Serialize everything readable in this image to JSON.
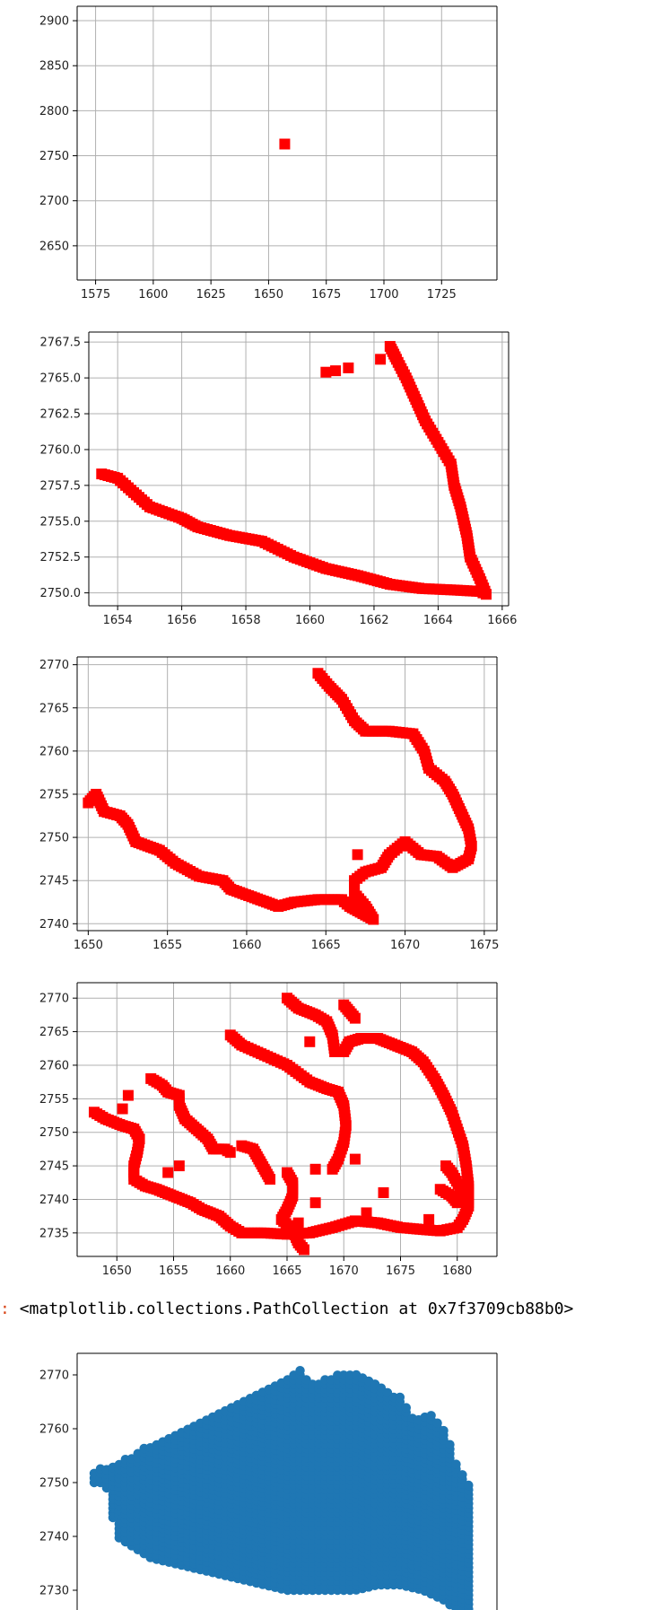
{
  "notebook": {
    "output_prompt": ":",
    "output_repr": "<matplotlib.collections.PathCollection at 0x7f3709cb88b0>"
  },
  "chart_data": [
    {
      "type": "scatter",
      "grid": true,
      "xlim": [
        1567,
        1749
      ],
      "ylim": [
        2612,
        2916
      ],
      "xticks": [
        1575,
        1600,
        1625,
        1650,
        1675,
        1700,
        1725
      ],
      "yticks": [
        2650,
        2700,
        2750,
        2800,
        2850,
        2900
      ],
      "color": "#ff0000",
      "marker": "square",
      "series": [
        {
          "points": [
            [
              1657,
              2763
            ]
          ]
        }
      ]
    },
    {
      "type": "scatter",
      "grid": true,
      "xlim": [
        1653.1,
        1666.2
      ],
      "ylim": [
        2749.1,
        2768.2
      ],
      "xticks": [
        1654,
        1656,
        1658,
        1660,
        1662,
        1664,
        1666
      ],
      "ytick_labels": [
        "2750.0",
        "2752.5",
        "2755.0",
        "2757.5",
        "2760.0",
        "2762.5",
        "2765.0",
        "2767.5"
      ],
      "yticks": [
        2750.0,
        2752.5,
        2755.0,
        2757.5,
        2760.0,
        2762.5,
        2765.0,
        2767.5
      ],
      "color": "#ff0000",
      "marker": "square",
      "series": [
        {
          "polyline": [
            [
              1653.5,
              2758.3
            ],
            [
              1654.0,
              2758.0
            ],
            [
              1654.5,
              2757.0
            ],
            [
              1655.0,
              2756.0
            ],
            [
              1656.0,
              2755.2
            ],
            [
              1656.5,
              2754.6
            ],
            [
              1657.5,
              2754.0
            ],
            [
              1658.5,
              2753.6
            ],
            [
              1659.5,
              2752.5
            ],
            [
              1660.5,
              2751.7
            ],
            [
              1661.5,
              2751.2
            ],
            [
              1662.5,
              2750.6
            ],
            [
              1663.5,
              2750.3
            ],
            [
              1664.5,
              2750.2
            ],
            [
              1665.3,
              2750.1
            ],
            [
              1665.5,
              2749.9
            ],
            [
              1665.3,
              2751.0
            ],
            [
              1665.0,
              2752.5
            ],
            [
              1664.9,
              2754.0
            ],
            [
              1664.7,
              2756.0
            ],
            [
              1664.5,
              2757.5
            ],
            [
              1664.4,
              2759.0
            ],
            [
              1664.0,
              2760.5
            ],
            [
              1663.6,
              2762.0
            ],
            [
              1663.3,
              2763.5
            ],
            [
              1663.0,
              2765.0
            ],
            [
              1662.7,
              2766.3
            ],
            [
              1662.5,
              2767.2
            ]
          ]
        },
        {
          "points": [
            [
              1662.2,
              2766.3
            ],
            [
              1660.5,
              2765.4
            ],
            [
              1660.8,
              2765.5
            ],
            [
              1661.2,
              2765.7
            ]
          ]
        }
      ]
    },
    {
      "type": "scatter",
      "grid": true,
      "xlim": [
        1649.3,
        1675.8
      ],
      "ylim": [
        2739.2,
        2770.9
      ],
      "xticks": [
        1650,
        1655,
        1660,
        1665,
        1670,
        1675
      ],
      "yticks": [
        2740,
        2745,
        2750,
        2755,
        2760,
        2765,
        2770
      ],
      "color": "#ff0000",
      "marker": "square",
      "series": [
        {
          "polyline": [
            [
              1650.0,
              2754.0
            ],
            [
              1650.5,
              2755.0
            ],
            [
              1651.0,
              2753.0
            ],
            [
              1652.0,
              2752.5
            ],
            [
              1652.5,
              2751.5
            ],
            [
              1653.0,
              2749.5
            ],
            [
              1654.5,
              2748.5
            ],
            [
              1655.5,
              2747.0
            ],
            [
              1657.0,
              2745.5
            ],
            [
              1658.5,
              2745.0
            ],
            [
              1659.0,
              2744.0
            ],
            [
              1660.5,
              2743.0
            ],
            [
              1662.0,
              2742.0
            ],
            [
              1663.0,
              2742.5
            ],
            [
              1664.5,
              2742.8
            ],
            [
              1666.0,
              2742.8
            ],
            [
              1666.5,
              2742.0
            ],
            [
              1667.5,
              2741.0
            ],
            [
              1668.0,
              2740.5
            ],
            [
              1667.5,
              2742.0
            ],
            [
              1666.8,
              2743.5
            ],
            [
              1666.8,
              2745.0
            ],
            [
              1667.5,
              2746.0
            ],
            [
              1668.5,
              2746.5
            ],
            [
              1669.0,
              2748.0
            ],
            [
              1670.0,
              2749.5
            ],
            [
              1671.0,
              2748.0
            ],
            [
              1672.0,
              2747.8
            ],
            [
              1673.0,
              2746.5
            ],
            [
              1674.0,
              2747.5
            ],
            [
              1674.2,
              2749.0
            ],
            [
              1674.0,
              2751.0
            ],
            [
              1673.5,
              2753.0
            ],
            [
              1673.0,
              2755.0
            ],
            [
              1672.5,
              2756.5
            ],
            [
              1671.5,
              2758.0
            ],
            [
              1671.2,
              2760.0
            ],
            [
              1670.5,
              2762.0
            ],
            [
              1669.0,
              2762.3
            ],
            [
              1667.5,
              2762.3
            ],
            [
              1666.8,
              2763.5
            ],
            [
              1666.0,
              2766.0
            ],
            [
              1665.2,
              2767.5
            ],
            [
              1664.5,
              2769.0
            ]
          ]
        },
        {
          "points": [
            [
              1667.0,
              2748.0
            ]
          ]
        }
      ]
    },
    {
      "type": "scatter",
      "grid": true,
      "xlim": [
        1646.5,
        1683.5
      ],
      "ylim": [
        2731.5,
        2772.3
      ],
      "xticks": [
        1650,
        1655,
        1660,
        1665,
        1670,
        1675,
        1680
      ],
      "yticks": [
        2735,
        2740,
        2745,
        2750,
        2755,
        2760,
        2765,
        2770
      ],
      "color": "#ff0000",
      "marker": "square",
      "series": [
        {
          "polyline": [
            [
              1648.0,
              2753.0
            ],
            [
              1649.0,
              2752.0
            ],
            [
              1650.5,
              2751.0
            ],
            [
              1651.5,
              2750.5
            ],
            [
              1652.0,
              2749.0
            ],
            [
              1651.8,
              2747.0
            ],
            [
              1651.5,
              2745.0
            ],
            [
              1651.5,
              2743.0
            ],
            [
              1652.5,
              2742.0
            ],
            [
              1653.5,
              2741.5
            ],
            [
              1655.0,
              2740.5
            ],
            [
              1656.5,
              2739.5
            ],
            [
              1657.5,
              2738.5
            ],
            [
              1659.0,
              2737.5
            ],
            [
              1660.0,
              2736.0
            ],
            [
              1661.0,
              2735.0
            ],
            [
              1663.0,
              2735.0
            ],
            [
              1665.0,
              2734.8
            ],
            [
              1667.0,
              2735.0
            ],
            [
              1669.0,
              2735.8
            ],
            [
              1671.0,
              2736.8
            ],
            [
              1673.0,
              2736.5
            ],
            [
              1675.0,
              2735.8
            ],
            [
              1677.0,
              2735.5
            ],
            [
              1678.5,
              2735.3
            ],
            [
              1680.0,
              2735.8
            ],
            [
              1680.5,
              2737.0
            ],
            [
              1681.0,
              2739.0
            ],
            [
              1681.0,
              2742.0
            ],
            [
              1680.8,
              2745.0
            ],
            [
              1680.5,
              2748.0
            ],
            [
              1680.0,
              2750.5
            ],
            [
              1679.5,
              2753.0
            ],
            [
              1678.8,
              2755.5
            ],
            [
              1678.0,
              2758.0
            ],
            [
              1677.0,
              2760.5
            ],
            [
              1676.0,
              2762.0
            ],
            [
              1674.5,
              2763.0
            ],
            [
              1673.0,
              2764.0
            ],
            [
              1671.5,
              2764.0
            ],
            [
              1670.5,
              2763.5
            ],
            [
              1670.0,
              2762.0
            ]
          ]
        },
        {
          "polyline": [
            [
              1660.0,
              2764.5
            ],
            [
              1661.0,
              2763.0
            ],
            [
              1663.0,
              2761.5
            ],
            [
              1665.0,
              2760.0
            ],
            [
              1667.0,
              2757.5
            ],
            [
              1668.5,
              2756.5
            ],
            [
              1669.5,
              2756.0
            ],
            [
              1670.0,
              2754.0
            ],
            [
              1670.2,
              2751.0
            ],
            [
              1670.0,
              2748.5
            ],
            [
              1669.5,
              2746.0
            ],
            [
              1669.0,
              2744.5
            ]
          ]
        },
        {
          "polyline": [
            [
              1665.0,
              2770.0
            ],
            [
              1666.0,
              2768.5
            ],
            [
              1667.5,
              2767.5
            ],
            [
              1668.5,
              2766.5
            ],
            [
              1669.0,
              2764.5
            ],
            [
              1669.2,
              2762.0
            ]
          ]
        },
        {
          "polyline": [
            [
              1670.0,
              2769.0
            ],
            [
              1670.5,
              2768.0
            ],
            [
              1671.0,
              2767.0
            ]
          ]
        },
        {
          "polyline": [
            [
              1653.0,
              2758.0
            ],
            [
              1654.0,
              2757.0
            ],
            [
              1654.5,
              2756.0
            ],
            [
              1655.5,
              2755.5
            ],
            [
              1655.5,
              2754.0
            ],
            [
              1656.0,
              2752.0
            ],
            [
              1657.0,
              2750.5
            ],
            [
              1658.0,
              2749.0
            ],
            [
              1658.5,
              2747.5
            ],
            [
              1659.5,
              2747.5
            ],
            [
              1660.0,
              2747.0
            ]
          ]
        },
        {
          "polyline": [
            [
              1661.0,
              2748.0
            ],
            [
              1662.0,
              2747.5
            ],
            [
              1662.5,
              2746.0
            ],
            [
              1663.0,
              2744.5
            ],
            [
              1663.5,
              2743.0
            ]
          ]
        },
        {
          "polyline": [
            [
              1665.0,
              2744.0
            ],
            [
              1665.5,
              2742.5
            ],
            [
              1665.5,
              2740.5
            ],
            [
              1665.0,
              2738.5
            ],
            [
              1664.5,
              2737.0
            ],
            [
              1665.5,
              2735.5
            ],
            [
              1666.0,
              2733.5
            ],
            [
              1666.5,
              2732.5
            ]
          ]
        },
        {
          "polyline": [
            [
              1678.5,
              2741.5
            ],
            [
              1679.5,
              2740.5
            ],
            [
              1680.0,
              2739.5
            ],
            [
              1680.5,
              2741.0
            ],
            [
              1679.5,
              2744.0
            ],
            [
              1679.0,
              2745.0
            ]
          ]
        },
        {
          "points": [
            [
              1650.5,
              2753.5
            ],
            [
              1651.0,
              2755.5
            ],
            [
              1654.5,
              2744.0
            ],
            [
              1655.5,
              2745.0
            ],
            [
              1667.0,
              2763.5
            ],
            [
              1667.5,
              2739.5
            ],
            [
              1671.0,
              2746.0
            ],
            [
              1673.5,
              2741.0
            ],
            [
              1672.0,
              2738.0
            ],
            [
              1677.5,
              2737.0
            ],
            [
              1666.0,
              2736.5
            ],
            [
              1667.5,
              2744.5
            ]
          ]
        }
      ]
    },
    {
      "type": "scatter",
      "grid": false,
      "xlim": [
        1646.5,
        1683.5
      ],
      "ylim": [
        2724.0,
        2774.0
      ],
      "xticks": [],
      "yticks": [
        2730,
        2740,
        2750,
        2760,
        2770
      ],
      "color": "#1f77b4",
      "marker": "circle",
      "grid_fill": {
        "x_start": 1648.0,
        "x_end": 1681.0,
        "x_step": 0.55,
        "y_step": 0.85,
        "top": [
          [
            1648.0,
            2752
          ],
          [
            1649.0,
            2753
          ],
          [
            1650.5,
            2754
          ],
          [
            1652.0,
            2756
          ],
          [
            1654.0,
            2758
          ],
          [
            1656.0,
            2760
          ],
          [
            1658.0,
            2762
          ],
          [
            1660.0,
            2764
          ],
          [
            1662.0,
            2766
          ],
          [
            1664.0,
            2768
          ],
          [
            1665.5,
            2770
          ],
          [
            1666.0,
            2772
          ],
          [
            1667.0,
            2768
          ],
          [
            1669.0,
            2770
          ],
          [
            1671.5,
            2770
          ],
          [
            1673.0,
            2768
          ],
          [
            1675.0,
            2766
          ],
          [
            1676.0,
            2762
          ],
          [
            1677.5,
            2763
          ],
          [
            1679.0,
            2760
          ],
          [
            1680.0,
            2753
          ],
          [
            1681.0,
            2750
          ]
        ],
        "bottom": [
          [
            1648.0,
            2750
          ],
          [
            1649.0,
            2750
          ],
          [
            1650.0,
            2740
          ],
          [
            1651.5,
            2738
          ],
          [
            1653.0,
            2736
          ],
          [
            1655.0,
            2735
          ],
          [
            1657.0,
            2734
          ],
          [
            1659.0,
            2733
          ],
          [
            1661.0,
            2732
          ],
          [
            1663.0,
            2731
          ],
          [
            1665.0,
            2730
          ],
          [
            1667.0,
            2730
          ],
          [
            1669.0,
            2730
          ],
          [
            1671.0,
            2730
          ],
          [
            1673.0,
            2731
          ],
          [
            1675.0,
            2731
          ],
          [
            1677.0,
            2730
          ],
          [
            1679.0,
            2728
          ],
          [
            1680.0,
            2726
          ],
          [
            1681.0,
            2724
          ]
        ]
      }
    }
  ]
}
